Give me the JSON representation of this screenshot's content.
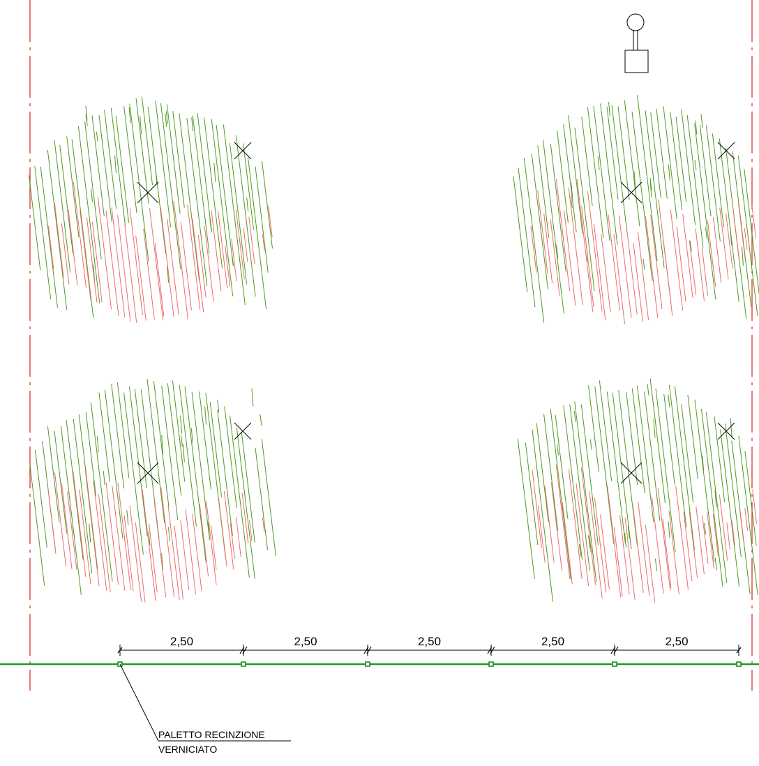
{
  "colors": {
    "background": "#ffffff",
    "axis_line": "#e02020",
    "hatch_green": "#4e9a1e",
    "hatch_red": "#f06a6a",
    "fence_line": "#1f9a1f",
    "post_marker": "#1a8a1a",
    "ink": "#000000"
  },
  "dimensions": [
    "2,50",
    "2,50",
    "2,50",
    "2,50",
    "2,50"
  ],
  "callout": {
    "line1": "PALETTO RECINZIONE",
    "line2": "VERNICIATO"
  },
  "symbols": {
    "tree_center": "x-mark-icon",
    "lamp_post": "lamp-post-icon",
    "fence_post": "square-post-icon"
  }
}
